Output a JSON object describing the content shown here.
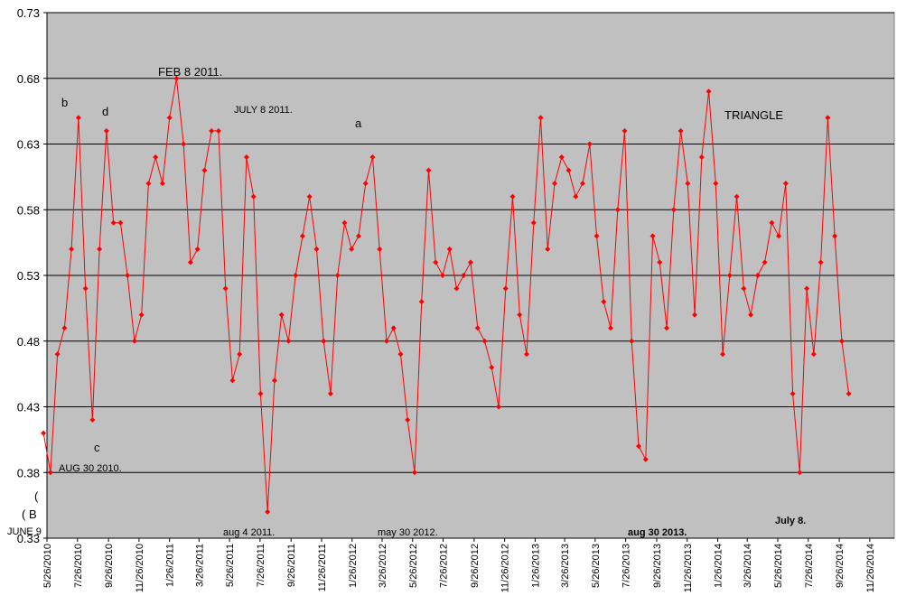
{
  "chart_data": {
    "type": "line",
    "x": [
      "5/19/2010",
      "6/2/2010",
      "6/16/2010",
      "6/30/2010",
      "7/14/2010",
      "7/28/2010",
      "8/11/2010",
      "8/25/2010",
      "9/8/2010",
      "9/22/2010",
      "10/6/2010",
      "10/20/2010",
      "11/3/2010",
      "11/17/2010",
      "12/1/2010",
      "12/15/2010",
      "12/29/2010",
      "1/12/2011",
      "1/26/2011",
      "2/9/2011",
      "2/23/2011",
      "3/9/2011",
      "3/23/2011",
      "4/6/2011",
      "4/20/2011",
      "5/4/2011",
      "5/18/2011",
      "6/1/2011",
      "6/15/2011",
      "6/29/2011",
      "7/13/2011",
      "7/27/2011",
      "8/10/2011",
      "8/24/2011",
      "9/7/2011",
      "9/21/2011",
      "10/5/2011",
      "10/19/2011",
      "11/2/2011",
      "11/16/2011",
      "11/30/2011",
      "12/14/2011",
      "12/28/2011",
      "1/11/2012",
      "1/25/2012",
      "2/8/2012",
      "2/22/2012",
      "3/7/2012",
      "3/21/2012",
      "4/4/2012",
      "4/18/2012",
      "5/2/2012",
      "5/16/2012",
      "5/30/2012",
      "6/13/2012",
      "6/27/2012",
      "7/11/2012",
      "7/25/2012",
      "8/8/2012",
      "8/22/2012",
      "9/5/2012",
      "9/19/2012",
      "10/3/2012",
      "10/17/2012",
      "10/31/2012",
      "11/14/2012",
      "11/28/2012",
      "12/12/2012",
      "12/26/2012",
      "1/9/2013",
      "1/23/2013",
      "2/6/2013",
      "2/20/2013",
      "3/6/2013",
      "3/20/2013",
      "4/3/2013",
      "4/17/2013",
      "5/1/2013",
      "5/15/2013",
      "5/29/2013",
      "6/12/2013",
      "6/26/2013",
      "7/10/2013",
      "7/24/2013",
      "8/7/2013",
      "8/21/2013",
      "9/4/2013",
      "9/18/2013",
      "10/2/2013",
      "10/16/2013",
      "10/30/2013",
      "11/13/2013",
      "11/27/2013",
      "12/11/2013",
      "12/25/2013",
      "1/8/2014",
      "1/22/2014",
      "2/5/2014",
      "2/19/2014",
      "3/5/2014",
      "3/19/2014",
      "4/2/2014",
      "4/16/2014",
      "4/30/2014",
      "5/14/2014",
      "5/28/2014",
      "6/11/2014",
      "6/25/2014",
      "7/9/2014",
      "7/23/2014",
      "8/6/2014",
      "8/20/2014",
      "9/3/2014",
      "9/17/2014",
      "10/1/2014",
      "10/15/2014"
    ],
    "series": [
      {
        "color": "#ff0000",
        "values": [
          0.41,
          0.38,
          0.47,
          0.49,
          0.55,
          0.65,
          0.52,
          0.42,
          0.55,
          0.64,
          0.57,
          0.57,
          0.53,
          0.48,
          0.5,
          0.6,
          0.62,
          0.6,
          0.65,
          0.68,
          0.63,
          0.54,
          0.55,
          0.61,
          0.64,
          0.64,
          0.52,
          0.45,
          0.47,
          0.62,
          0.59,
          0.44,
          0.35,
          0.45,
          0.5,
          0.48,
          0.53,
          0.56,
          0.59,
          0.55,
          0.48,
          0.44,
          0.53,
          0.57,
          0.55,
          0.56,
          0.6,
          0.62,
          0.55,
          0.48,
          0.49,
          0.47,
          0.42,
          0.38,
          0.51,
          0.61,
          0.54,
          0.53,
          0.55,
          0.52,
          0.53,
          0.54,
          0.49,
          0.48,
          0.46,
          0.43,
          0.52,
          0.59,
          0.5,
          0.47,
          0.57,
          0.65,
          0.55,
          0.6,
          0.62,
          0.61,
          0.59,
          0.6,
          0.63,
          0.56,
          0.51,
          0.49,
          0.58,
          0.64,
          0.48,
          0.4,
          0.39,
          0.56,
          0.54,
          0.49,
          0.58,
          0.64,
          0.6,
          0.5,
          0.62,
          0.67,
          0.6,
          0.47,
          0.53,
          0.59,
          0.52,
          0.5,
          0.53,
          0.54,
          0.57,
          0.56,
          0.6,
          0.44,
          0.38,
          0.52,
          0.47,
          0.54,
          0.65,
          0.56,
          0.48,
          0.44
        ]
      }
    ],
    "xlim": [
      "5/26/2010",
      "1/14/2015"
    ],
    "xticks": [
      "5/26/2010",
      "7/26/2010",
      "9/26/2010",
      "11/26/2010",
      "1/26/2011",
      "3/26/2011",
      "5/26/2011",
      "7/26/2011",
      "9/26/2011",
      "11/26/2011",
      "1/26/2012",
      "3/26/2012",
      "5/26/2012",
      "7/26/2012",
      "9/26/2012",
      "11/26/2012",
      "1/26/2013",
      "3/26/2013",
      "5/26/2013",
      "7/26/2013",
      "9/26/2013",
      "11/26/2013",
      "1/26/2014",
      "3/26/2014",
      "5/26/2014",
      "7/26/2014",
      "9/26/2014",
      "11/26/2014"
    ],
    "ylim": [
      0.33,
      0.73
    ],
    "yticks": [
      0.33,
      0.38,
      0.43,
      0.48,
      0.53,
      0.58,
      0.63,
      0.68,
      0.73
    ],
    "grid": true,
    "annotations": [
      "FEB 8 2011.",
      "b",
      "d",
      "JULY 8 2011.",
      "a",
      "TRIANGLE",
      "c",
      "AUG 30 2010.",
      "(",
      "( B",
      "JUNE 9",
      "aug 4 2011.",
      "may 30 2012.",
      "aug 30 2013.",
      "July 8."
    ]
  }
}
